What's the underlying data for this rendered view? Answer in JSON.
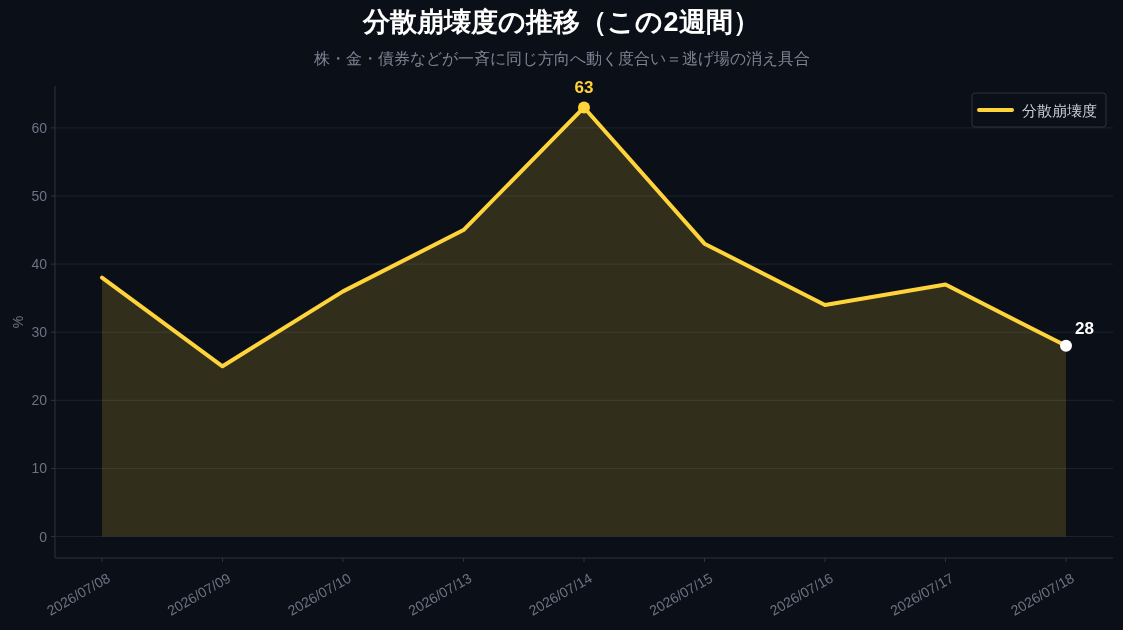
{
  "chart_data": {
    "type": "area",
    "title": "分散崩壊度の推移（この2週間）",
    "subtitle": "株・金・債券などが一斉に同じ方向へ動く度合い＝逃げ場の消え具合",
    "ylabel": "%",
    "categories": [
      "2026/07/08",
      "2026/07/09",
      "2026/07/10",
      "2026/07/13",
      "2026/07/14",
      "2026/07/15",
      "2026/07/16",
      "2026/07/17",
      "2026/07/18"
    ],
    "series": [
      {
        "name": "分散崩壊度",
        "color": "#ffd43b",
        "values": [
          38,
          25,
          36,
          45,
          63,
          43,
          34,
          37,
          28
        ]
      },
      {
        "type": "scatter",
        "marker": "circle",
        "color": "#ffd43b",
        "values": [
          null,
          null,
          null,
          null,
          63,
          null,
          null,
          null,
          null
        ],
        "value_labels": [
          null,
          null,
          null,
          null,
          "63",
          null,
          null,
          null,
          null
        ]
      },
      {
        "type": "scatter",
        "marker": "circle",
        "color": "#ffffff",
        "values": [
          null,
          null,
          null,
          null,
          null,
          null,
          null,
          null,
          28
        ],
        "value_labels": [
          null,
          null,
          null,
          null,
          null,
          null,
          null,
          null,
          "28"
        ]
      }
    ],
    "ylim": [
      -3.15,
      66.15
    ],
    "yticks": [
      0,
      10,
      20,
      30,
      40,
      50,
      60
    ],
    "grid": "y",
    "legend": "top right"
  }
}
